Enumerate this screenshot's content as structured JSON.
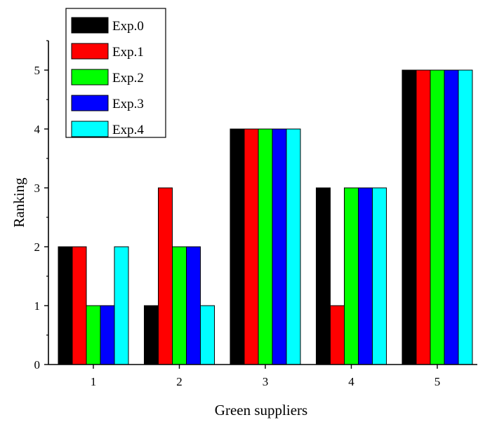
{
  "chart_data": {
    "type": "bar",
    "title": "",
    "xlabel": "Green suppliers",
    "ylabel": "Ranking",
    "categories": [
      "1",
      "2",
      "3",
      "4",
      "5"
    ],
    "series": [
      {
        "name": "Exp.0",
        "color": "#000000",
        "values": [
          2,
          1,
          4,
          3,
          5
        ]
      },
      {
        "name": "Exp.1",
        "color": "#ff0000",
        "values": [
          2,
          3,
          4,
          1,
          5
        ]
      },
      {
        "name": "Exp.2",
        "color": "#00ff00",
        "values": [
          1,
          2,
          4,
          3,
          5
        ]
      },
      {
        "name": "Exp.3",
        "color": "#0000ff",
        "values": [
          1,
          2,
          4,
          3,
          5
        ]
      },
      {
        "name": "Exp.4",
        "color": "#00ffff",
        "values": [
          2,
          1,
          4,
          3,
          5
        ]
      }
    ],
    "ylim": [
      0,
      5.5
    ],
    "yticks": [
      0,
      1,
      2,
      3,
      4,
      5
    ],
    "grid": false,
    "legend_position": "top-left"
  }
}
